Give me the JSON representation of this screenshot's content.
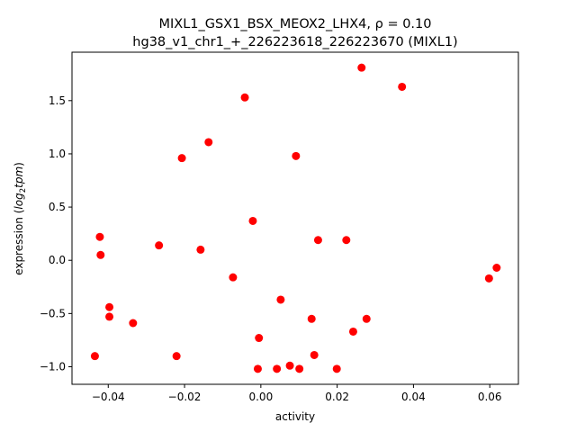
{
  "chart_data": {
    "type": "scatter",
    "title_line1": "MIXL1_GSX1_BSX_MEOX2_LHX4, ρ = 0.10",
    "title_line2": "hg38_v1_chr1_+_226223618_226223670 (MIXL1)",
    "xlabel": "activity",
    "ylabel_prefix": "expression (",
    "ylabel_math": "log",
    "ylabel_sub": "2",
    "ylabel_math2": "tpm",
    "ylabel_suffix": ")",
    "xlim": [
      -0.0495,
      0.0675
    ],
    "ylim": [
      -1.165,
      1.955
    ],
    "xticks": [
      {
        "value": -0.04,
        "label": "−0.04"
      },
      {
        "value": -0.02,
        "label": "−0.02"
      },
      {
        "value": 0.0,
        "label": "0.00"
      },
      {
        "value": 0.02,
        "label": "0.02"
      },
      {
        "value": 0.04,
        "label": "0.04"
      },
      {
        "value": 0.06,
        "label": "0.06"
      }
    ],
    "yticks": [
      {
        "value": -1.0,
        "label": "−1.0"
      },
      {
        "value": -0.5,
        "label": "−0.5"
      },
      {
        "value": 0.0,
        "label": "0.0"
      },
      {
        "value": 0.5,
        "label": "0.5"
      },
      {
        "value": 1.0,
        "label": "1.0"
      },
      {
        "value": 1.5,
        "label": "1.5"
      }
    ],
    "grid": false,
    "point_color": "#ff0000",
    "points": [
      [
        0.0264,
        1.81
      ],
      [
        0.037,
        1.63
      ],
      [
        -0.0042,
        1.53
      ],
      [
        -0.0137,
        1.11
      ],
      [
        -0.0207,
        0.96
      ],
      [
        0.0092,
        0.98
      ],
      [
        -0.0021,
        0.37
      ],
      [
        -0.0422,
        0.22
      ],
      [
        -0.0267,
        0.14
      ],
      [
        -0.0158,
        0.1
      ],
      [
        0.015,
        0.19
      ],
      [
        0.0224,
        0.19
      ],
      [
        -0.042,
        0.05
      ],
      [
        0.0618,
        -0.07
      ],
      [
        0.0598,
        -0.17
      ],
      [
        -0.0073,
        -0.16
      ],
      [
        0.0052,
        -0.37
      ],
      [
        -0.0397,
        -0.44
      ],
      [
        -0.0397,
        -0.53
      ],
      [
        -0.0335,
        -0.59
      ],
      [
        0.0133,
        -0.55
      ],
      [
        0.0277,
        -0.55
      ],
      [
        0.0242,
        -0.67
      ],
      [
        -0.0005,
        -0.73
      ],
      [
        -0.0435,
        -0.9
      ],
      [
        -0.0221,
        -0.9
      ],
      [
        0.014,
        -0.89
      ],
      [
        0.0076,
        -0.99
      ],
      [
        -0.0008,
        -1.02
      ],
      [
        0.0042,
        -1.02
      ],
      [
        0.0101,
        -1.02
      ],
      [
        0.0199,
        -1.02
      ]
    ]
  }
}
